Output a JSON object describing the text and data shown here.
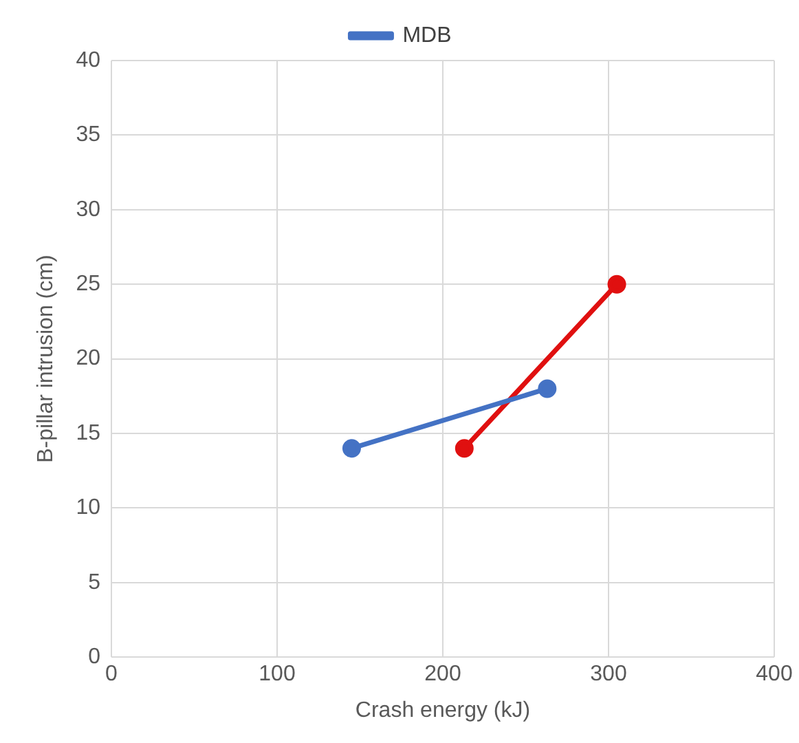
{
  "chart_data": {
    "type": "line",
    "xlabel": "Crash energy (kJ)",
    "ylabel": "B-pillar intrusion (cm)",
    "xlim": [
      0,
      400
    ],
    "xticks": [
      0,
      100,
      200,
      300,
      400
    ],
    "ylim": [
      0,
      40
    ],
    "yticks": [
      0,
      5,
      10,
      15,
      20,
      25,
      30,
      35,
      40
    ],
    "grid": true,
    "legend": "top",
    "marker": "circle",
    "line_style": "solid",
    "series": [
      {
        "name": "MDB",
        "color": "#4472c4",
        "x": [
          145,
          263
        ],
        "values": [
          14,
          18
        ]
      },
      {
        "color": "#e01010",
        "x": [
          213,
          305
        ],
        "values": [
          14,
          25
        ]
      }
    ]
  }
}
